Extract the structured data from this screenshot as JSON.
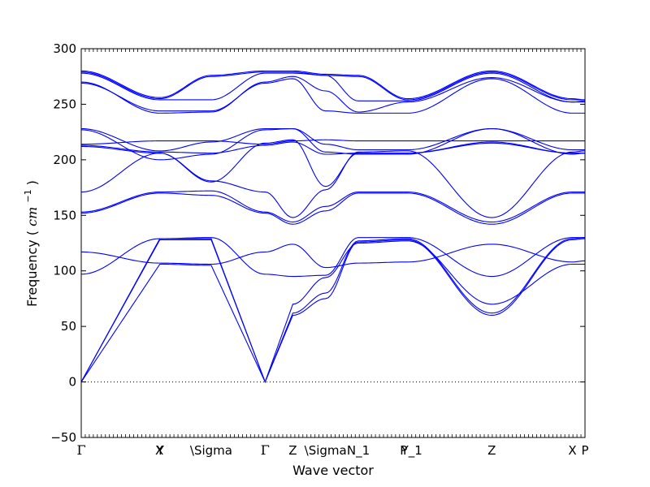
{
  "chart_data": {
    "type": "line",
    "xlabel": "Wave vector",
    "ylabel": "Frequency",
    "ylabel_unit_text": "cm",
    "ylabel_unit_exp": "−1",
    "ylim": [
      -50,
      300
    ],
    "yticks": [
      "300",
      "250",
      "200",
      "150",
      "100",
      "50",
      "0",
      "−50"
    ],
    "ytick_values": [
      300,
      250,
      200,
      150,
      100,
      50,
      0,
      -50
    ],
    "xlim": [
      0,
      100
    ],
    "high_symmetry_points": [
      {
        "label": "Γ",
        "x": 0
      },
      {
        "label": "X",
        "x": 15.5
      },
      {
        "label": "Y",
        "x": 15.7
      },
      {
        "label": "\\Sigma",
        "x": 25.8
      },
      {
        "label": "Γ",
        "x": 36.5
      },
      {
        "label": "Z",
        "x": 42.0
      },
      {
        "label": "\\Sigma",
        "x": 48.5
      },
      {
        "label": "N_1",
        "x": 55.0
      },
      {
        "label": "P",
        "x": 64.0
      },
      {
        "label": "Y_1",
        "x": 65.6
      },
      {
        "label": "Z",
        "x": 81.5
      },
      {
        "label": "X",
        "x": 97.5
      },
      {
        "label": "P",
        "x": 100
      }
    ],
    "zero_line": {
      "y": 0,
      "style": "dotted"
    },
    "line_color": "#0000ff",
    "knot_x": [
      0,
      15.6,
      25.8,
      36.5,
      42.0,
      48.5,
      55.0,
      64.8,
      81.5,
      97.5,
      100
    ],
    "bands": [
      [
        0,
        128,
        128,
        0,
        60,
        75,
        126,
        128,
        60,
        128,
        129
      ],
      [
        0,
        129,
        129,
        0,
        62,
        80,
        127,
        129,
        62,
        129,
        130
      ],
      [
        0,
        106,
        105,
        0,
        70,
        94,
        125,
        127,
        70,
        106,
        106
      ],
      [
        97,
        129,
        130,
        97,
        95,
        96,
        130,
        130,
        95,
        130,
        130
      ],
      [
        117,
        107,
        106,
        117,
        124,
        103,
        107,
        108,
        124,
        108,
        109
      ],
      [
        152,
        170,
        168,
        152,
        142,
        154,
        170,
        170,
        142,
        170,
        170
      ],
      [
        153,
        171,
        172,
        153,
        144,
        158,
        171,
        171,
        144,
        171,
        171
      ],
      [
        171,
        206,
        181,
        171,
        148,
        173,
        207,
        208,
        148,
        207,
        208
      ],
      [
        212,
        206,
        180,
        215,
        218,
        176,
        206,
        206,
        215,
        206,
        206
      ],
      [
        213,
        207,
        206,
        213,
        216,
        205,
        206,
        206,
        216,
        206,
        206
      ],
      [
        214,
        217,
        217,
        214,
        217,
        218,
        217,
        217,
        217,
        217,
        217
      ],
      [
        227,
        200,
        205,
        227,
        228,
        207,
        205,
        205,
        228,
        205,
        206
      ],
      [
        228,
        208,
        216,
        228,
        228,
        214,
        209,
        209,
        228,
        209,
        209
      ],
      [
        269,
        244,
        244,
        269,
        273,
        244,
        242,
        242,
        273,
        242,
        242
      ],
      [
        270,
        242,
        243,
        270,
        275,
        262,
        243,
        252,
        274,
        252,
        253
      ],
      [
        278,
        254,
        254,
        278,
        278,
        276,
        253,
        253,
        278,
        252,
        252
      ],
      [
        279,
        255,
        275,
        279,
        279,
        276,
        275,
        254,
        279,
        254,
        254
      ],
      [
        280,
        256,
        276,
        280,
        280,
        277,
        276,
        255,
        280,
        255,
        254
      ]
    ]
  }
}
